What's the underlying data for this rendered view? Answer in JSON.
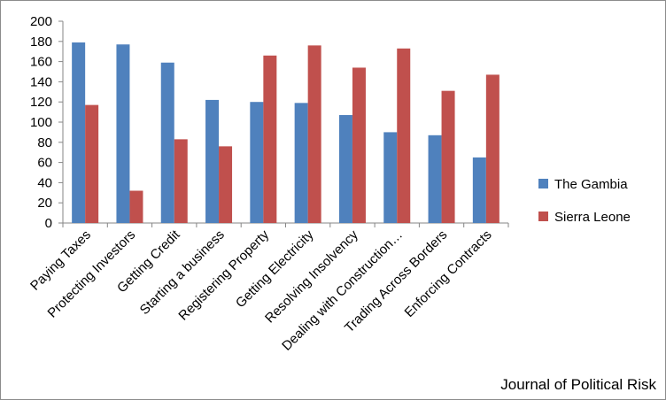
{
  "chart_data": {
    "type": "bar",
    "categories": [
      "Paying Taxes",
      "Protecting Investors",
      "Getting Credit",
      "Starting a business",
      "Registering Property",
      "Getting Electricity",
      "Resolving Insolvency",
      "Dealing with Construction…",
      "Trading Across Borders",
      "Enforcing Contracts"
    ],
    "series": [
      {
        "name": "The Gambia",
        "color": "#4f81bd",
        "values": [
          179,
          177,
          159,
          122,
          120,
          119,
          107,
          90,
          87,
          65
        ]
      },
      {
        "name": "Sierra Leone",
        "color": "#c0504d",
        "values": [
          117,
          32,
          83,
          76,
          166,
          176,
          154,
          173,
          131,
          147
        ]
      }
    ],
    "ylim": [
      0,
      200
    ],
    "yticks": [
      0,
      20,
      40,
      60,
      80,
      100,
      120,
      140,
      160,
      180,
      200
    ],
    "grid": false,
    "legend_position": "right"
  },
  "source_note": "Journal of Political Risk"
}
